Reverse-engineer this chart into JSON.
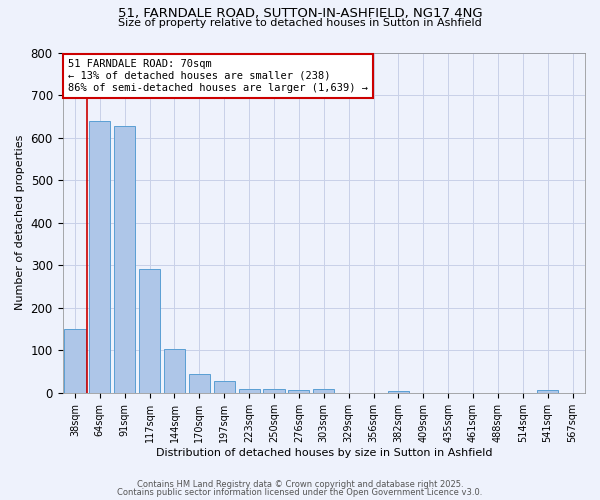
{
  "title1": "51, FARNDALE ROAD, SUTTON-IN-ASHFIELD, NG17 4NG",
  "title2": "Size of property relative to detached houses in Sutton in Ashfield",
  "xlabel": "Distribution of detached houses by size in Sutton in Ashfield",
  "ylabel": "Number of detached properties",
  "bin_labels": [
    "38sqm",
    "64sqm",
    "91sqm",
    "117sqm",
    "144sqm",
    "170sqm",
    "197sqm",
    "223sqm",
    "250sqm",
    "276sqm",
    "303sqm",
    "329sqm",
    "356sqm",
    "382sqm",
    "409sqm",
    "435sqm",
    "461sqm",
    "488sqm",
    "514sqm",
    "541sqm",
    "567sqm"
  ],
  "bar_values": [
    150,
    638,
    627,
    291,
    102,
    45,
    29,
    8,
    10,
    6,
    8,
    0,
    0,
    5,
    0,
    0,
    0,
    0,
    0,
    6,
    0
  ],
  "bar_color": "#aec6e8",
  "bar_edge_color": "#5a9fd4",
  "grid_color": "#c8d0e8",
  "bg_color": "#eef2fc",
  "vline_x": 0.5,
  "vline_color": "#cc0000",
  "annotation_text": "51 FARNDALE ROAD: 70sqm\n← 13% of detached houses are smaller (238)\n86% of semi-detached houses are larger (1,639) →",
  "annotation_box_color": "#ffffff",
  "annotation_box_edge": "#cc0000",
  "footer1": "Contains HM Land Registry data © Crown copyright and database right 2025.",
  "footer2": "Contains public sector information licensed under the Open Government Licence v3.0.",
  "ylim": [
    0,
    800
  ],
  "yticks": [
    0,
    100,
    200,
    300,
    400,
    500,
    600,
    700,
    800
  ]
}
